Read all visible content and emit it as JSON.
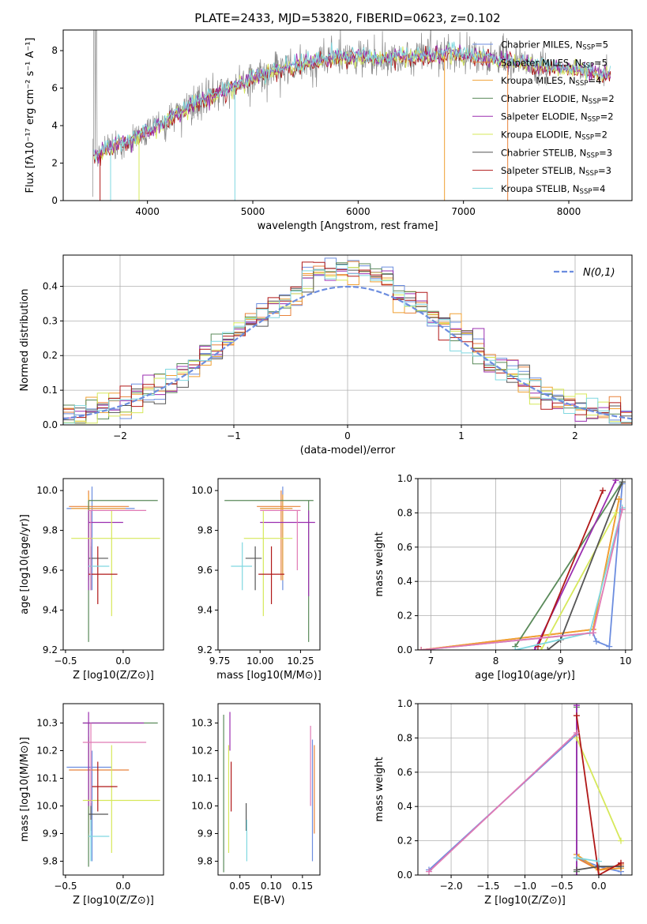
{
  "figure_title": "PLATE=2433, MJD=53820, FIBERID=0623, z=0.102",
  "colors": {
    "Chabrier MILES": "#6c8ddf",
    "Salpeter MILES": "#e8823a",
    "Kroupa MILES": "#f0a032",
    "Chabrier ELODIE": "#5a8a5a",
    "Salpeter ELODIE": "#9b2fb0",
    "Kroupa ELODIE": "#d6e85a",
    "Chabrier STELIB": "#555555",
    "Salpeter STELIB": "#b01818",
    "Kroupa STELIB": "#7fd8e0",
    "data": "#888888",
    "gaussian": "#6c8ddf",
    "pink": "#e07ab4"
  },
  "chart_data": [
    {
      "id": "spectrum",
      "type": "line",
      "title": "PLATE=2433, MJD=53820, FIBERID=0623, z=0.102",
      "xlabel": "wavelength [Angstrom, rest frame]",
      "ylabel": "Flux [fλ10⁻¹⁷ erg cm⁻² s⁻¹ A⁻¹]",
      "xlim": [
        3200,
        8600
      ],
      "ylim": [
        0,
        9.1
      ],
      "xticks": [
        4000,
        5000,
        6000,
        7000,
        8000
      ],
      "yticks": [
        0,
        2,
        4,
        6,
        8
      ],
      "legend": [
        {
          "label": "Chabrier MILES, N",
          "sub": "SSP",
          "tail": "=5"
        },
        {
          "label": "Salpeter MILES, N",
          "sub": "SSP",
          "tail": "=5"
        },
        {
          "label": "Kroupa MILES, N",
          "sub": "SSP",
          "tail": "=4"
        },
        {
          "label": "Chabrier ELODIE, N",
          "sub": "SSP",
          "tail": "=2"
        },
        {
          "label": "Salpeter ELODIE, N",
          "sub": "SSP",
          "tail": "=2"
        },
        {
          "label": "Kroupa ELODIE, N",
          "sub": "SSP",
          "tail": "=2"
        },
        {
          "label": "Chabrier STELIB, N",
          "sub": "SSP",
          "tail": "=3"
        },
        {
          "label": "Salpeter STELIB, N",
          "sub": "SSP",
          "tail": "=3"
        },
        {
          "label": "Kroupa STELIB, N",
          "sub": "SSP",
          "tail": "=4"
        }
      ],
      "continuum": {
        "x": [
          3480,
          3600,
          3800,
          4000,
          4200,
          4400,
          4600,
          4800,
          5000,
          5200,
          5400,
          5600,
          5800,
          6000,
          6200,
          6400,
          6600,
          6800,
          7000,
          7200,
          7400,
          7600,
          7800,
          8000,
          8200,
          8400
        ],
        "y": [
          2.3,
          2.7,
          3.1,
          3.7,
          4.3,
          5.0,
          5.6,
          6.0,
          6.5,
          6.9,
          7.2,
          7.5,
          7.6,
          7.7,
          7.6,
          7.6,
          7.7,
          7.8,
          7.8,
          7.6,
          7.5,
          7.3,
          7.1,
          7.0,
          6.9,
          6.7
        ]
      }
    },
    {
      "id": "residuals",
      "type": "histogram",
      "xlabel": "(data-model)/error",
      "ylabel": "Normed distribution",
      "xlim": [
        -2.5,
        2.5
      ],
      "ylim": [
        0,
        0.49
      ],
      "xticks": [
        -2,
        -1,
        0,
        1,
        2
      ],
      "yticks": [
        0.0,
        0.1,
        0.2,
        0.3,
        0.4
      ],
      "legend_label": "N(0,1)",
      "bin_width": 0.1
    },
    {
      "id": "age-vs-Z",
      "type": "errorbar",
      "xlabel": "Z [log10(Z/Z⊙)]",
      "ylabel": "age  [log10(age/yr)]",
      "xlim": [
        -0.52,
        0.35
      ],
      "ylim": [
        9.2,
        10.06
      ],
      "xticks": [
        -0.5,
        0.0
      ],
      "yticks": [
        9.2,
        9.4,
        9.6,
        9.8,
        10.0
      ],
      "points": [
        {
          "s": "Chabrier MILES",
          "x": -0.27,
          "y": 9.91,
          "xe": [
            -0.49,
            0.1
          ],
          "ye": [
            9.5,
            10.02
          ]
        },
        {
          "s": "Salpeter MILES",
          "x": -0.3,
          "y": 9.92,
          "xe": [
            -0.47,
            0.05
          ],
          "ye": [
            9.55,
            10.0
          ]
        },
        {
          "s": "Kroupa MILES",
          "x": -0.3,
          "y": 9.91,
          "xe": [
            -0.45,
            0.02
          ],
          "ye": [
            9.55,
            9.98
          ]
        },
        {
          "s": "Chabrier ELODIE",
          "x": -0.3,
          "y": 9.95,
          "xe": [
            -0.3,
            0.3
          ],
          "ye": [
            9.24,
            9.95
          ]
        },
        {
          "s": "Salpeter ELODIE",
          "x": -0.3,
          "y": 9.84,
          "xe": [
            -0.3,
            0.0
          ],
          "ye": [
            9.5,
            9.9
          ]
        },
        {
          "s": "Kroupa ELODIE",
          "x": -0.1,
          "y": 9.76,
          "xe": [
            -0.45,
            0.32
          ],
          "ye": [
            9.37,
            9.9
          ]
        },
        {
          "s": "Chabrier STELIB",
          "x": -0.28,
          "y": 9.66,
          "xe": [
            -0.3,
            -0.13
          ],
          "ye": [
            9.5,
            9.72
          ]
        },
        {
          "s": "Salpeter STELIB",
          "x": -0.22,
          "y": 9.58,
          "xe": [
            -0.3,
            -0.05
          ],
          "ye": [
            9.43,
            9.72
          ]
        },
        {
          "s": "Kroupa STELIB",
          "x": -0.28,
          "y": 9.62,
          "xe": [
            -0.3,
            -0.12
          ],
          "ye": [
            9.5,
            9.74
          ]
        },
        {
          "s": "pink",
          "x": -0.28,
          "y": 9.9,
          "xe": [
            -0.3,
            0.2
          ],
          "ye": [
            9.5,
            9.9
          ]
        }
      ]
    },
    {
      "id": "age-vs-mass",
      "type": "errorbar",
      "xlabel": "mass [log10(M/M⊙)]",
      "ylabel": "",
      "xlim": [
        9.74,
        10.37
      ],
      "ylim": [
        9.2,
        10.06
      ],
      "xticks": [
        9.75,
        10.0,
        10.25
      ],
      "yticks": [
        9.2,
        9.4,
        9.6,
        9.8,
        10.0
      ],
      "points": [
        {
          "s": "Chabrier MILES",
          "x": 10.14,
          "y": 9.91,
          "xe": [
            10.0,
            10.2
          ],
          "ye": [
            9.5,
            10.02
          ]
        },
        {
          "s": "Salpeter MILES",
          "x": 10.13,
          "y": 9.92,
          "xe": [
            9.98,
            10.25
          ],
          "ye": [
            9.55,
            10.0
          ]
        },
        {
          "s": "Kroupa MILES",
          "x": 10.14,
          "y": 9.91,
          "xe": [
            10.0,
            10.2
          ],
          "ye": [
            9.55,
            9.98
          ]
        },
        {
          "s": "Chabrier ELODIE",
          "x": 10.3,
          "y": 9.95,
          "xe": [
            9.78,
            10.33
          ],
          "ye": [
            9.24,
            9.95
          ]
        },
        {
          "s": "Salpeter ELODIE",
          "x": 10.3,
          "y": 9.84,
          "xe": [
            10.0,
            10.34
          ],
          "ye": [
            9.47,
            9.9
          ]
        },
        {
          "s": "Kroupa ELODIE",
          "x": 10.02,
          "y": 9.76,
          "xe": [
            9.9,
            10.2
          ],
          "ye": [
            9.37,
            9.9
          ]
        },
        {
          "s": "Chabrier STELIB",
          "x": 9.97,
          "y": 9.66,
          "xe": [
            9.91,
            10.01
          ],
          "ye": [
            9.5,
            9.72
          ]
        },
        {
          "s": "Salpeter STELIB",
          "x": 10.07,
          "y": 9.58,
          "xe": [
            9.99,
            10.15
          ],
          "ye": [
            9.43,
            9.72
          ]
        },
        {
          "s": "Kroupa STELIB",
          "x": 9.89,
          "y": 9.62,
          "xe": [
            9.82,
            9.95
          ],
          "ye": [
            9.5,
            9.74
          ]
        },
        {
          "s": "pink",
          "x": 10.23,
          "y": 9.9,
          "xe": [
            10.0,
            10.25
          ],
          "ye": [
            9.6,
            9.9
          ]
        }
      ]
    },
    {
      "id": "weight-vs-age",
      "type": "line",
      "xlabel": "age  [log10(age/yr)]",
      "ylabel": "mass weight",
      "xlim": [
        6.8,
        10.1
      ],
      "ylim": [
        0,
        1
      ],
      "xticks": [
        7,
        8,
        9,
        10
      ],
      "yticks": [
        0.0,
        0.2,
        0.4,
        0.6,
        0.8,
        1.0
      ],
      "series": [
        {
          "s": "Chabrier MILES",
          "x": [
            6.85,
            9.5,
            9.55,
            9.75,
            9.95
          ],
          "y": [
            0.0,
            0.1,
            0.05,
            0.02,
            0.97
          ]
        },
        {
          "s": "Salpeter MILES",
          "x": [
            6.85,
            9.5,
            9.9
          ],
          "y": [
            0.0,
            0.12,
            0.88
          ]
        },
        {
          "s": "Kroupa MILES",
          "x": [
            6.85,
            9.5,
            9.9
          ],
          "y": [
            0.0,
            0.12,
            0.88
          ]
        },
        {
          "s": "Chabrier ELODIE",
          "x": [
            8.3,
            9.95
          ],
          "y": [
            0.02,
            0.98
          ]
        },
        {
          "s": "Salpeter ELODIE",
          "x": [
            8.6,
            9.85
          ],
          "y": [
            0.0,
            0.99
          ]
        },
        {
          "s": "Kroupa ELODIE",
          "x": [
            8.7,
            9.85
          ],
          "y": [
            0.0,
            0.8
          ]
        },
        {
          "s": "Chabrier STELIB",
          "x": [
            8.8,
            9.0,
            9.95
          ],
          "y": [
            0.0,
            0.06,
            0.98
          ]
        },
        {
          "s": "Salpeter STELIB",
          "x": [
            8.65,
            9.65
          ],
          "y": [
            0.02,
            0.93
          ]
        },
        {
          "s": "Kroupa STELIB",
          "x": [
            8.3,
            9.45,
            9.95
          ],
          "y": [
            0.0,
            0.1,
            0.83
          ]
        },
        {
          "s": "pink",
          "x": [
            6.85,
            9.5,
            9.95
          ],
          "y": [
            0.0,
            0.1,
            0.82
          ]
        }
      ]
    },
    {
      "id": "mass-vs-Z",
      "type": "errorbar",
      "xlabel": "Z [log10(Z/Z⊙)]",
      "ylabel": "mass [log10(M/M⊙)]",
      "xlim": [
        -0.52,
        0.35
      ],
      "ylim": [
        9.75,
        10.37
      ],
      "xticks": [
        -0.5,
        0.0
      ],
      "yticks": [
        9.8,
        9.9,
        10.0,
        10.1,
        10.2,
        10.3
      ],
      "points": [
        {
          "s": "Chabrier MILES",
          "x": -0.27,
          "y": 10.14,
          "xe": [
            -0.49,
            -0.1
          ],
          "ye": [
            9.8,
            10.2
          ]
        },
        {
          "s": "Salpeter MILES",
          "x": -0.3,
          "y": 10.13,
          "xe": [
            -0.47,
            0.05
          ],
          "ye": [
            9.9,
            10.25
          ]
        },
        {
          "s": "Chabrier ELODIE",
          "x": -0.3,
          "y": 10.3,
          "xe": [
            -0.35,
            0.3
          ],
          "ye": [
            9.78,
            10.3
          ]
        },
        {
          "s": "Salpeter ELODIE",
          "x": -0.3,
          "y": 10.3,
          "xe": [
            -0.35,
            0.18
          ],
          "ye": [
            10.0,
            10.34
          ]
        },
        {
          "s": "Kroupa ELODIE",
          "x": -0.1,
          "y": 10.02,
          "xe": [
            -0.35,
            0.32
          ],
          "ye": [
            9.83,
            10.22
          ]
        },
        {
          "s": "Chabrier STELIB",
          "x": -0.28,
          "y": 9.97,
          "xe": [
            -0.3,
            -0.13
          ],
          "ye": [
            9.91,
            10.01
          ]
        },
        {
          "s": "Salpeter STELIB",
          "x": -0.22,
          "y": 10.07,
          "xe": [
            -0.27,
            -0.05
          ],
          "ye": [
            9.98,
            10.16
          ]
        },
        {
          "s": "Kroupa STELIB",
          "x": -0.28,
          "y": 9.89,
          "xe": [
            -0.3,
            -0.12
          ],
          "ye": [
            9.8,
            9.95
          ]
        },
        {
          "s": "pink",
          "x": -0.28,
          "y": 10.23,
          "xe": [
            -0.35,
            0.2
          ],
          "ye": [
            10.0,
            10.3
          ]
        }
      ]
    },
    {
      "id": "mass-vs-EBV",
      "type": "errorbar",
      "xlabel": "E(B-V)",
      "ylabel": "",
      "xlim": [
        0.015,
        0.178
      ],
      "ylim": [
        9.75,
        10.37
      ],
      "xticks": [
        0.05,
        0.1,
        0.15
      ],
      "yticks": [
        9.8,
        9.9,
        10.0,
        10.1,
        10.2,
        10.3
      ],
      "points": [
        {
          "s": "Chabrier ELODIE",
          "x": 0.024,
          "ye": [
            9.76,
            10.33
          ]
        },
        {
          "s": "Kroupa ELODIE",
          "x": 0.032,
          "ye": [
            9.83,
            10.22
          ]
        },
        {
          "s": "Salpeter ELODIE",
          "x": 0.034,
          "ye": [
            10.2,
            10.34
          ]
        },
        {
          "s": "Salpeter STELIB",
          "x": 0.036,
          "ye": [
            9.98,
            10.16
          ]
        },
        {
          "s": "Chabrier STELIB",
          "x": 0.06,
          "ye": [
            9.91,
            10.01
          ]
        },
        {
          "s": "Kroupa STELIB",
          "x": 0.061,
          "ye": [
            9.8,
            9.95
          ]
        },
        {
          "s": "pink",
          "x": 0.163,
          "ye": [
            10.0,
            10.29
          ]
        },
        {
          "s": "Chabrier MILES",
          "x": 0.166,
          "ye": [
            9.8,
            10.24
          ]
        },
        {
          "s": "Salpeter MILES",
          "x": 0.169,
          "ye": [
            9.9,
            10.22
          ]
        }
      ]
    },
    {
      "id": "weight-vs-Z",
      "type": "line",
      "xlabel": "Z [log10(Z/Z⊙)]",
      "ylabel": "mass weight",
      "xlim": [
        -2.45,
        0.45
      ],
      "ylim": [
        0,
        1
      ],
      "xticks": [
        -2.0,
        -1.5,
        -1.0,
        -0.5,
        0.0
      ],
      "yticks": [
        0.0,
        0.2,
        0.4,
        0.6,
        0.8,
        1.0
      ],
      "series": [
        {
          "s": "Chabrier MILES",
          "x": [
            -2.3,
            -0.3,
            -0.3,
            0.0,
            0.3
          ],
          "y": [
            0.03,
            0.82,
            0.1,
            0.05,
            0.02
          ]
        },
        {
          "s": "Salpeter MILES",
          "x": [
            -0.3,
            0.0,
            0.3
          ],
          "y": [
            0.1,
            0.03,
            0.06
          ]
        },
        {
          "s": "Kroupa MILES",
          "x": [
            -0.3,
            0.0,
            0.3
          ],
          "y": [
            0.12,
            0.03,
            0.04
          ]
        },
        {
          "s": "Chabrier ELODIE",
          "x": [
            -0.3,
            -0.3
          ],
          "y": [
            0.02,
            0.98
          ]
        },
        {
          "s": "Salpeter ELODIE",
          "x": [
            -0.3,
            -0.3
          ],
          "y": [
            0.0,
            0.99
          ]
        },
        {
          "s": "Kroupa ELODIE",
          "x": [
            -0.3,
            0.3
          ],
          "y": [
            0.8,
            0.2
          ]
        },
        {
          "s": "Chabrier STELIB",
          "x": [
            -0.3,
            0.0,
            0.3
          ],
          "y": [
            0.03,
            0.05,
            0.05
          ]
        },
        {
          "s": "Salpeter STELIB",
          "x": [
            -0.3,
            0.0,
            0.3
          ],
          "y": [
            0.93,
            0.0,
            0.07
          ]
        },
        {
          "s": "Kroupa STELIB",
          "x": [
            -0.3,
            0.0
          ],
          "y": [
            0.1,
            0.08
          ]
        },
        {
          "s": "pink",
          "x": [
            -2.3,
            -0.3
          ],
          "y": [
            0.02,
            0.83
          ]
        }
      ]
    }
  ]
}
